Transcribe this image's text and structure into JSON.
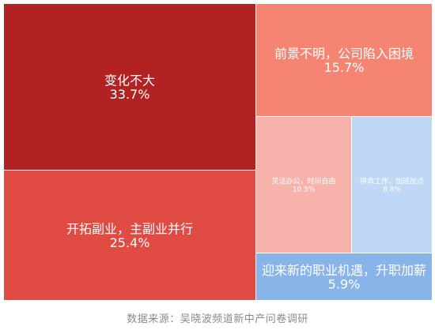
{
  "chart_data": {
    "type": "treemap",
    "items": [
      {
        "label": "变化不大",
        "value": 33.7,
        "value_label": "33.7%",
        "color": "#b22222"
      },
      {
        "label": "开拓副业，主副业并行",
        "value": 25.4,
        "value_label": "25.4%",
        "color": "#e04b44"
      },
      {
        "label": "前景不明，公司陷入困境",
        "value": 15.7,
        "value_label": "15.7%",
        "color": "#f58572"
      },
      {
        "label": "灵活办公，时间自由",
        "value": 10.5,
        "value_label": "10.5%",
        "color": "#f7b3ab"
      },
      {
        "label": "拼命工作，加班加点",
        "value": 8.8,
        "value_label": "8.8%",
        "color": "#bfd8f5"
      },
      {
        "label": "迎来新的职业机遇，升职加薪",
        "value": 5.9,
        "value_label": "5.9%",
        "color": "#89b4ea"
      }
    ]
  },
  "footer": {
    "source": "数据来源：吴晓波频道新中产问卷调研"
  }
}
